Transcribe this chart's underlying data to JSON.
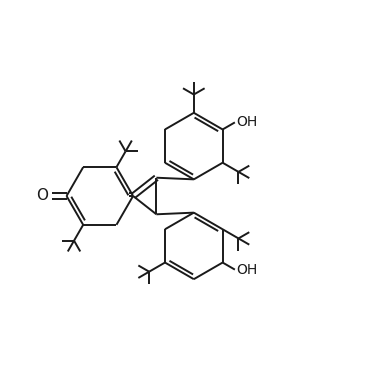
{
  "bg_color": "#ffffff",
  "line_color": "#1a1a1a",
  "line_width": 1.4,
  "figsize": [
    3.66,
    3.92
  ],
  "dpi": 100,
  "xlim": [
    -2.3,
    2.1
  ],
  "ylim": [
    -2.1,
    2.1
  ]
}
